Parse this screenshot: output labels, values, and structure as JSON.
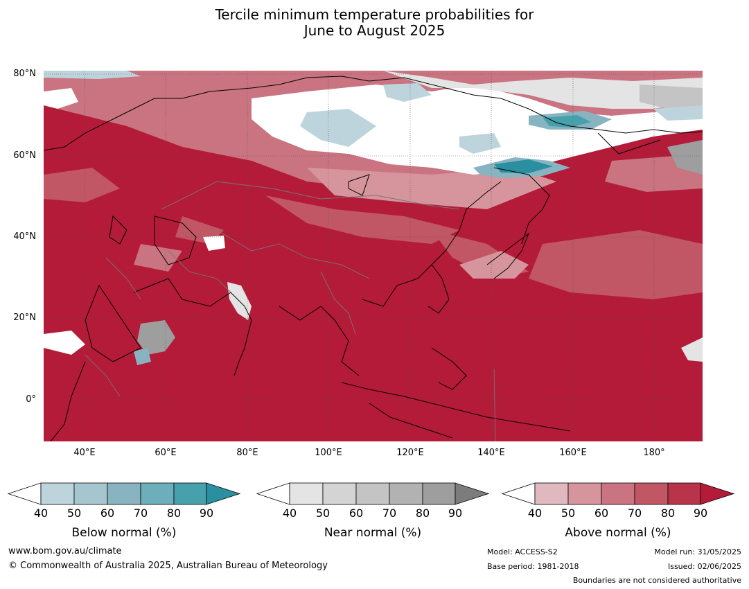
{
  "title": {
    "line1": "Tercile minimum temperature probabilities for",
    "line2": "June to August 2025"
  },
  "map": {
    "base_color": "#b31b38",
    "lat_labels": [
      "80°N",
      "60°N",
      "40°N",
      "20°N",
      "0°"
    ],
    "lon_labels": [
      "40°E",
      "60°E",
      "80°E",
      "100°E",
      "120°E",
      "140°E",
      "160°E",
      "180°"
    ]
  },
  "legends": [
    {
      "title": "Below normal (%)",
      "ticks": [
        "40",
        "50",
        "60",
        "70",
        "80",
        "90"
      ],
      "colors": [
        "#ffffff",
        "#bdd4dc",
        "#a5c6ce",
        "#88b4c1",
        "#6caeb9",
        "#47a1ad",
        "#2a8fa0"
      ]
    },
    {
      "title": "Near normal (%)",
      "ticks": [
        "40",
        "50",
        "60",
        "70",
        "80",
        "90"
      ],
      "colors": [
        "#ffffff",
        "#e4e4e4",
        "#d4d4d4",
        "#c4c4c4",
        "#b2b2b2",
        "#9e9e9e",
        "#7c7c7c"
      ]
    },
    {
      "title": "Above normal (%)",
      "ticks": [
        "40",
        "50",
        "60",
        "70",
        "80",
        "90"
      ],
      "colors": [
        "#ffffff",
        "#e0b8bf",
        "#d6949d",
        "#c97480",
        "#c15664",
        "#b8344a",
        "#b31b38"
      ]
    }
  ],
  "footer": {
    "website": "www.bom.gov.au/climate",
    "copyright": "© Commonwealth of Australia 2025, Australian Bureau of Meteorology",
    "model": "Model: ACCESS-S2",
    "base_period": "Base period: 1981-2018",
    "model_run": "Model run: 31/05/2025",
    "issued": "Issued: 02/06/2025",
    "disclaimer": "Boundaries are not considered authoritative"
  }
}
